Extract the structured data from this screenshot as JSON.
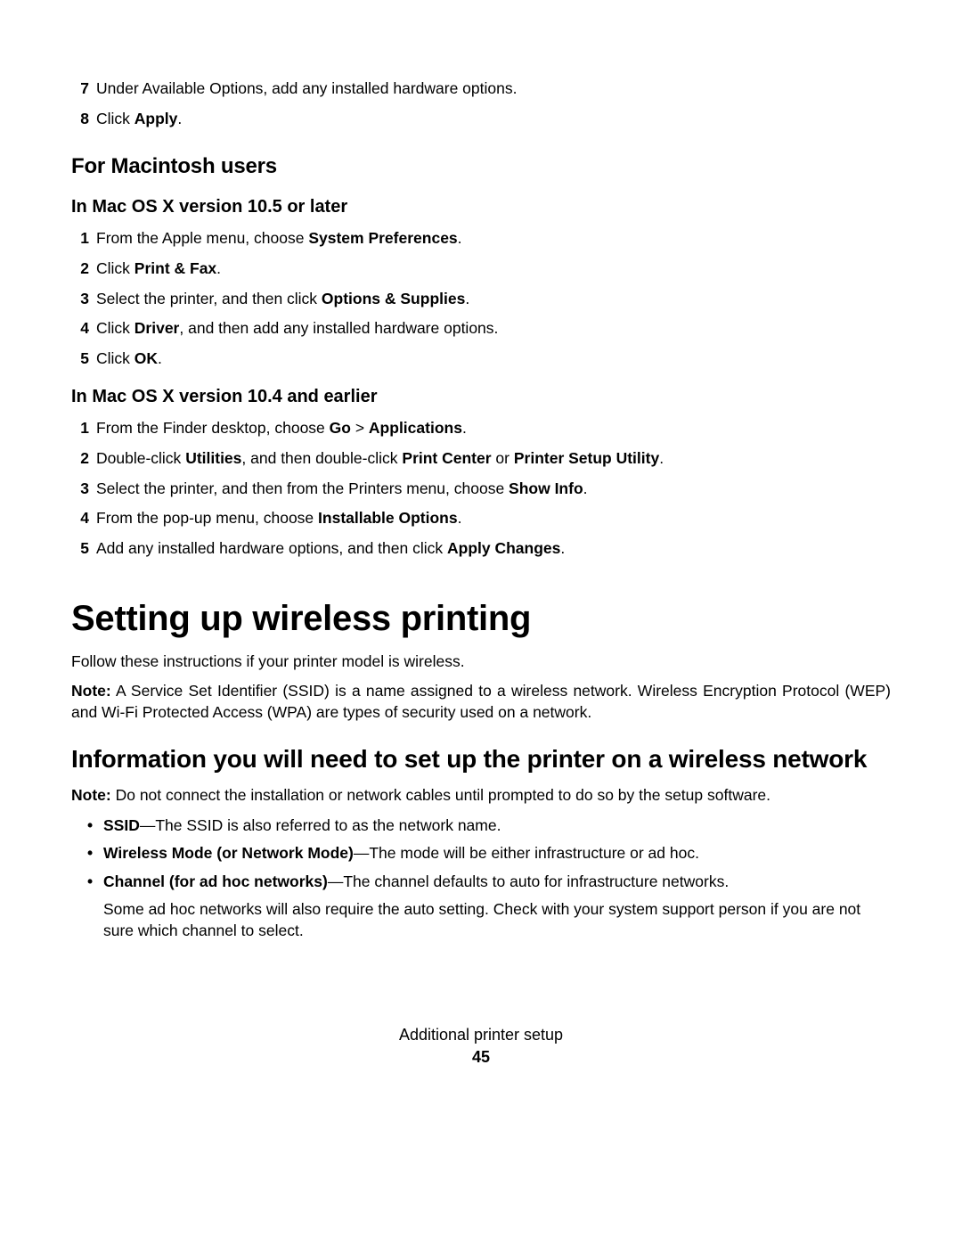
{
  "top_list": [
    {
      "num": "7",
      "parts": [
        {
          "t": "Under Available Options, add any installed hardware options."
        }
      ]
    },
    {
      "num": "8",
      "parts": [
        {
          "t": "Click "
        },
        {
          "t": "Apply",
          "b": true
        },
        {
          "t": "."
        }
      ]
    }
  ],
  "mac_heading": "For Macintosh users",
  "mac105_heading": "In Mac OS X version 10.5 or later",
  "mac105_list": [
    {
      "num": "1",
      "parts": [
        {
          "t": "From the Apple menu, choose "
        },
        {
          "t": "System Preferences",
          "b": true
        },
        {
          "t": "."
        }
      ]
    },
    {
      "num": "2",
      "parts": [
        {
          "t": "Click "
        },
        {
          "t": "Print & Fax",
          "b": true
        },
        {
          "t": "."
        }
      ]
    },
    {
      "num": "3",
      "parts": [
        {
          "t": "Select the printer, and then click "
        },
        {
          "t": "Options & Supplies",
          "b": true
        },
        {
          "t": "."
        }
      ]
    },
    {
      "num": "4",
      "parts": [
        {
          "t": "Click "
        },
        {
          "t": "Driver",
          "b": true
        },
        {
          "t": ", and then add any installed hardware options."
        }
      ]
    },
    {
      "num": "5",
      "parts": [
        {
          "t": "Click "
        },
        {
          "t": "OK",
          "b": true
        },
        {
          "t": "."
        }
      ]
    }
  ],
  "mac104_heading": "In Mac OS X version 10.4 and earlier",
  "mac104_list": [
    {
      "num": "1",
      "parts": [
        {
          "t": "From the Finder desktop, choose "
        },
        {
          "t": "Go",
          "b": true
        },
        {
          "t": " > "
        },
        {
          "t": "Applications",
          "b": true
        },
        {
          "t": "."
        }
      ]
    },
    {
      "num": "2",
      "parts": [
        {
          "t": "Double-click "
        },
        {
          "t": "Utilities",
          "b": true
        },
        {
          "t": ", and then double-click "
        },
        {
          "t": "Print Center",
          "b": true
        },
        {
          "t": " or "
        },
        {
          "t": "Printer Setup Utility",
          "b": true
        },
        {
          "t": "."
        }
      ]
    },
    {
      "num": "3",
      "parts": [
        {
          "t": "Select the printer, and then from the Printers menu, choose "
        },
        {
          "t": "Show Info",
          "b": true
        },
        {
          "t": "."
        }
      ]
    },
    {
      "num": "4",
      "parts": [
        {
          "t": "From the pop-up menu, choose "
        },
        {
          "t": "Installable Options",
          "b": true
        },
        {
          "t": "."
        }
      ]
    },
    {
      "num": "5",
      "parts": [
        {
          "t": "Add any installed hardware options, and then click "
        },
        {
          "t": "Apply Changes",
          "b": true
        },
        {
          "t": "."
        }
      ]
    }
  ],
  "wireless_h1": "Setting up wireless printing",
  "wireless_intro": "Follow these instructions if your printer model is wireless.",
  "wireless_note_parts": [
    {
      "t": "Note:",
      "b": true
    },
    {
      "t": " A Service Set Identifier (SSID) is a name assigned to a wireless network. Wireless Encryption Protocol (WEP) and Wi-Fi Protected Access (WPA) are types of security used on a network."
    }
  ],
  "info_h2": "Information you will need to set up the printer on a wireless network",
  "info_note_parts": [
    {
      "t": "Note:",
      "b": true
    },
    {
      "t": " Do not connect the installation or network cables until prompted to do so by the setup software."
    }
  ],
  "info_bullets": [
    {
      "parts": [
        {
          "t": "SSID",
          "b": true
        },
        {
          "t": "—The SSID is also referred to as the network name."
        }
      ]
    },
    {
      "parts": [
        {
          "t": "Wireless Mode (or Network Mode)",
          "b": true
        },
        {
          "t": "—The mode will be either infrastructure or ad hoc."
        }
      ]
    },
    {
      "parts": [
        {
          "t": "Channel (for ad hoc networks)",
          "b": true
        },
        {
          "t": "—The channel defaults to auto for infrastructure networks."
        }
      ],
      "sub": "Some ad hoc networks will also require the auto setting. Check with your system support person if you are not sure which channel to select."
    }
  ],
  "footer_title": "Additional printer setup",
  "footer_page": "45"
}
